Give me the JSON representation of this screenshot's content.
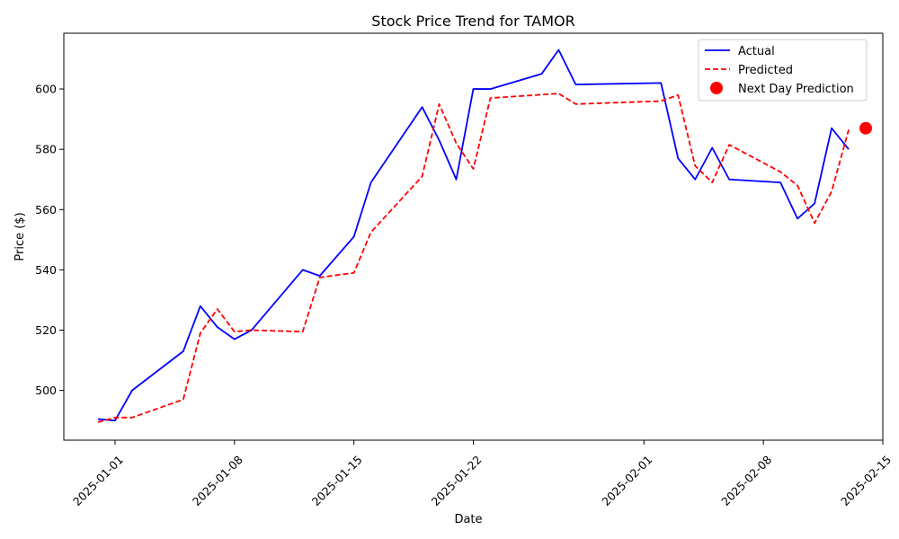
{
  "chart_data": {
    "type": "line",
    "title": "Stock Price Trend for TAMOR",
    "xlabel": "Date",
    "ylabel": "Price ($)",
    "xlim": [
      "2024-12-29",
      "2025-02-15"
    ],
    "ylim": [
      483.5,
      618.5
    ],
    "x_ticks": [
      "2025-01-01",
      "2025-01-08",
      "2025-01-15",
      "2025-01-22",
      "2025-02-01",
      "2025-02-08",
      "2025-02-15"
    ],
    "y_ticks": [
      500,
      520,
      540,
      560,
      580,
      600
    ],
    "grid": false,
    "legend_position": "top-right",
    "colors": {
      "actual": "#0000ff",
      "predicted": "#ff0000",
      "next_day": "#ff0000"
    },
    "series": [
      {
        "name": "Actual",
        "style": "solid",
        "points": [
          [
            "2024-12-31",
            490.5
          ],
          [
            "2025-01-01",
            490.0
          ],
          [
            "2025-01-02",
            500.0
          ],
          [
            "2025-01-05",
            513.0
          ],
          [
            "2025-01-06",
            528.0
          ],
          [
            "2025-01-07",
            521.0
          ],
          [
            "2025-01-08",
            517.0
          ],
          [
            "2025-01-09",
            520.0
          ],
          [
            "2025-01-12",
            540.0
          ],
          [
            "2025-01-13",
            538.0
          ],
          [
            "2025-01-15",
            551.0
          ],
          [
            "2025-01-16",
            569.0
          ],
          [
            "2025-01-19",
            594.0
          ],
          [
            "2025-01-20",
            583.0
          ],
          [
            "2025-01-21",
            570.0
          ],
          [
            "2025-01-22",
            600.0
          ],
          [
            "2025-01-23",
            600.0
          ],
          [
            "2025-01-26",
            605.0
          ],
          [
            "2025-01-27",
            613.0
          ],
          [
            "2025-01-28",
            601.5
          ],
          [
            "2025-02-02",
            602.0
          ],
          [
            "2025-02-03",
            577.0
          ],
          [
            "2025-02-04",
            570.0
          ],
          [
            "2025-02-05",
            580.5
          ],
          [
            "2025-02-06",
            570.0
          ],
          [
            "2025-02-09",
            569.0
          ],
          [
            "2025-02-10",
            557.0
          ],
          [
            "2025-02-11",
            562.0
          ],
          [
            "2025-02-12",
            587.0
          ],
          [
            "2025-02-13",
            580.0
          ]
        ]
      },
      {
        "name": "Predicted",
        "style": "dashed",
        "points": [
          [
            "2024-12-31",
            489.5
          ],
          [
            "2025-01-01",
            491.0
          ],
          [
            "2025-01-02",
            491.0
          ],
          [
            "2025-01-05",
            497.0
          ],
          [
            "2025-01-06",
            519.0
          ],
          [
            "2025-01-07",
            527.0
          ],
          [
            "2025-01-08",
            519.5
          ],
          [
            "2025-01-09",
            520.0
          ],
          [
            "2025-01-12",
            519.5
          ],
          [
            "2025-01-13",
            537.5
          ],
          [
            "2025-01-15",
            539.0
          ],
          [
            "2025-01-16",
            552.5
          ],
          [
            "2025-01-19",
            571.0
          ],
          [
            "2025-01-20",
            595.0
          ],
          [
            "2025-01-21",
            582.0
          ],
          [
            "2025-01-22",
            573.5
          ],
          [
            "2025-01-23",
            597.0
          ],
          [
            "2025-01-27",
            598.5
          ],
          [
            "2025-01-28",
            595.0
          ],
          [
            "2025-02-02",
            596.0
          ],
          [
            "2025-02-03",
            598.0
          ],
          [
            "2025-02-04",
            574.5
          ],
          [
            "2025-02-05",
            569.0
          ],
          [
            "2025-02-06",
            581.5
          ],
          [
            "2025-02-09",
            572.5
          ],
          [
            "2025-02-10",
            568.0
          ],
          [
            "2025-02-11",
            555.5
          ],
          [
            "2025-02-12",
            566.0
          ],
          [
            "2025-02-13",
            586.5
          ]
        ]
      },
      {
        "name": "Next Day Prediction",
        "style": "marker",
        "points": [
          [
            "2025-02-14",
            587.0
          ]
        ]
      }
    ]
  }
}
